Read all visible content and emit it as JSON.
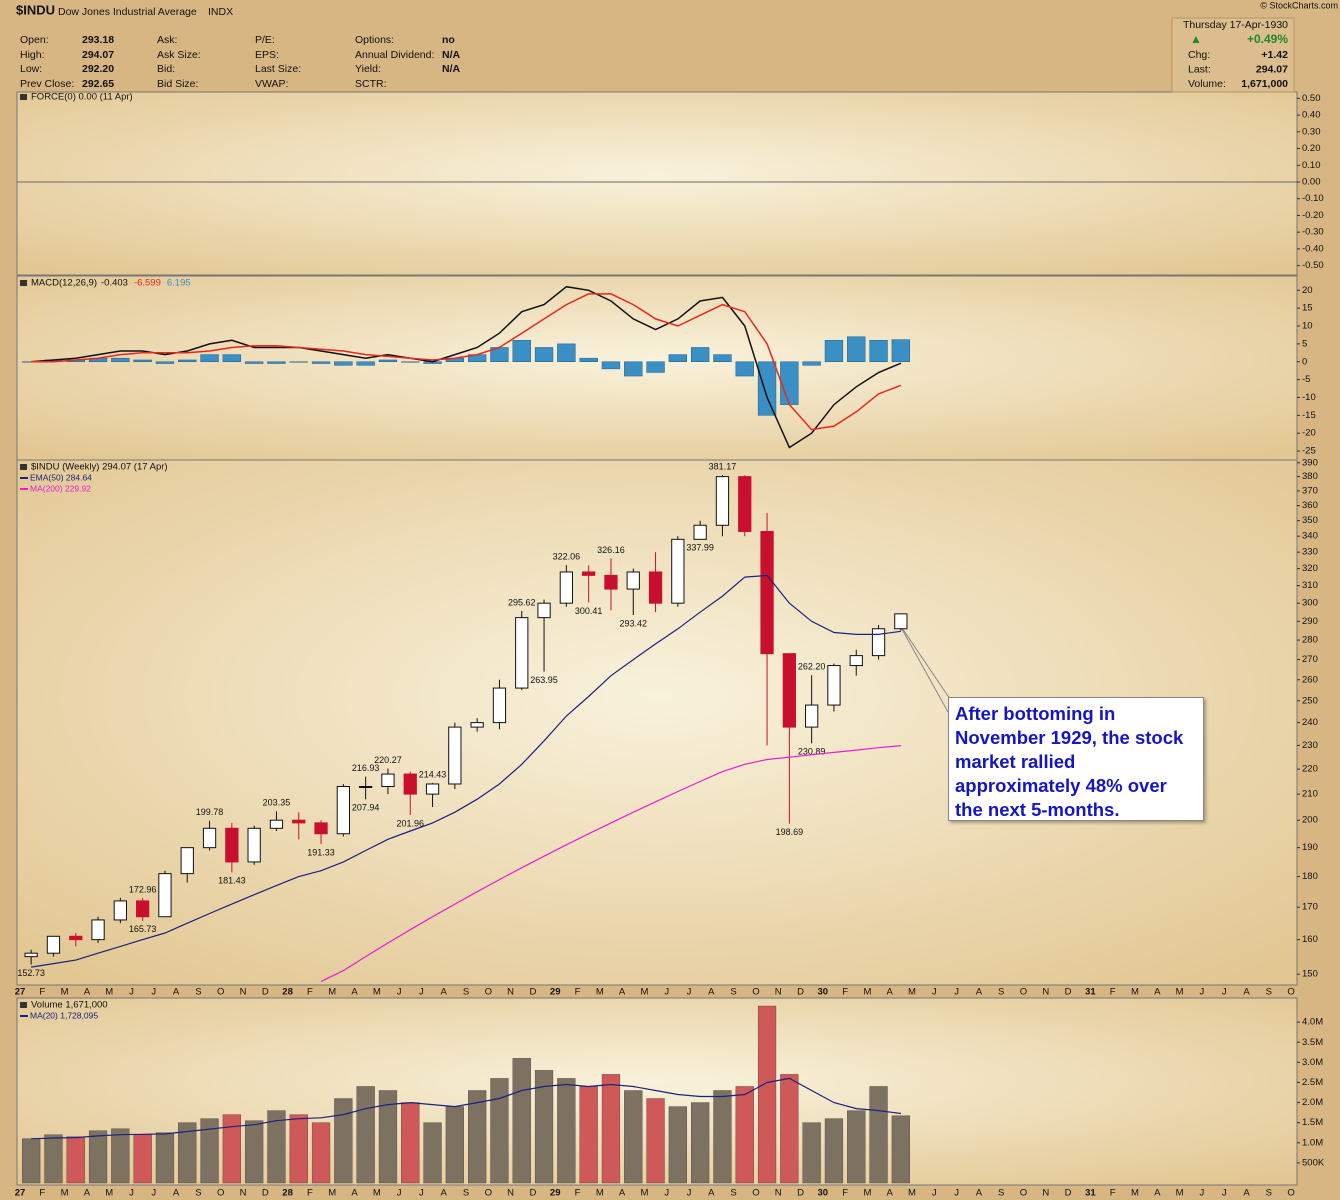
{
  "header": {
    "symbol": "$INDU",
    "name": "Dow Jones Industrial Average",
    "exchange": "INDX",
    "columns": [
      [
        {
          "label": "Open:",
          "value": "293.18"
        },
        {
          "label": "High:",
          "value": "294.07"
        },
        {
          "label": "Low:",
          "value": "292.20"
        },
        {
          "label": "Prev Close:",
          "value": "292.65"
        }
      ],
      [
        {
          "label": "Ask:"
        },
        {
          "label": "Ask Size:"
        },
        {
          "label": "Bid:"
        },
        {
          "label": "Bid Size:"
        }
      ],
      [
        {
          "label": "P/E:"
        },
        {
          "label": "EPS:"
        },
        {
          "label": "Last Size:"
        },
        {
          "label": "VWAP:"
        }
      ],
      [
        {
          "label": "Options:",
          "value": "no"
        },
        {
          "label": "Annual Dividend:",
          "value": "N/A"
        },
        {
          "label": "Yield:",
          "value": "N/A"
        },
        {
          "label": "SCTR:"
        }
      ]
    ],
    "date": "Thursday 17-Apr-1930",
    "change_pct": "+0.49%",
    "quote": [
      {
        "label": "Chg:",
        "value": "+1.42"
      },
      {
        "label": "Last:",
        "value": "294.07"
      },
      {
        "label": "Volume:",
        "value": "1,671,000"
      }
    ],
    "copyright": "© StockCharts.com"
  },
  "chart_data": [
    {
      "type": "line",
      "legend_label": "FORCE(0) 0.00 (11 Apr)",
      "zero_line": true,
      "ylim": [
        -0.55,
        0.55
      ],
      "yticks": [
        {
          "value": 0.5,
          "label": "0.50"
        },
        {
          "value": 0.4,
          "label": "0.40"
        },
        {
          "value": 0.3,
          "label": "0.30"
        },
        {
          "value": 0.2,
          "label": "0.20"
        },
        {
          "value": 0.1,
          "label": "0.10"
        },
        {
          "value": 0,
          "label": "0.00"
        },
        {
          "value": -0.1,
          "label": "-0.10"
        },
        {
          "value": -0.2,
          "label": "-0.20"
        },
        {
          "value": -0.3,
          "label": "-0.30"
        },
        {
          "value": -0.4,
          "label": "-0.40"
        },
        {
          "value": -0.5,
          "label": "-0.50"
        }
      ]
    },
    {
      "type": "macd",
      "legend_label": "MACD(12,26,9)",
      "ylim": [
        -27.5,
        24
      ],
      "yticks": [
        20,
        15,
        10,
        5,
        0,
        -5,
        -10,
        -15,
        -20,
        -25
      ],
      "series": [
        {
          "name": "-0.403",
          "kind": "line",
          "color": "#111111",
          "values": [
            0,
            0.5,
            1,
            2,
            3,
            3,
            2,
            3,
            5,
            6,
            4,
            4,
            4,
            3,
            2,
            1,
            2,
            1,
            0,
            2,
            4,
            8,
            14,
            16,
            21,
            20,
            17,
            12,
            9,
            12,
            17,
            18,
            10,
            -10,
            -24,
            -20,
            -12,
            -7,
            -3,
            -0.403,
            null,
            null,
            null,
            null,
            null,
            null,
            null,
            null,
            null,
            null,
            null,
            null,
            null,
            null,
            null,
            null,
            null,
            null
          ]
        },
        {
          "name": "-6.599",
          "kind": "line",
          "color": "#e8281e",
          "values": [
            0,
            0,
            0.5,
            1,
            2,
            2.5,
            2.5,
            2.5,
            3,
            4,
            4.5,
            4.5,
            4,
            3.5,
            3,
            2,
            1.5,
            1,
            0.5,
            1,
            2,
            4,
            8,
            12,
            16,
            19,
            19,
            16,
            12,
            10,
            13,
            16,
            14,
            5,
            -12,
            -19,
            -18,
            -14,
            -9,
            -6.599,
            null,
            null,
            null,
            null,
            null,
            null,
            null,
            null,
            null,
            null,
            null,
            null,
            null,
            null,
            null,
            null,
            null,
            null
          ]
        },
        {
          "name": "6.195",
          "kind": "bar",
          "color": "#3a8fc4",
          "values": [
            0,
            0.5,
            0.5,
            1,
            1,
            0.5,
            -0.5,
            0.5,
            2,
            2,
            -0.5,
            -0.5,
            0,
            -0.5,
            -1,
            -1,
            0.5,
            0,
            -0.5,
            1,
            2,
            4,
            6,
            4,
            5,
            1,
            -2,
            -4,
            -3,
            2,
            4,
            2,
            -4,
            -15,
            -12,
            -1,
            6,
            7,
            6,
            6.195,
            null,
            null,
            null,
            null,
            null,
            null,
            null,
            null,
            null,
            null,
            null,
            null,
            null,
            null,
            null,
            null,
            null,
            null
          ]
        }
      ]
    },
    {
      "type": "candlestick",
      "legend_label": "$INDU (Weekly) 294.07 (17 Apr)",
      "log_scale": true,
      "ylim": [
        147,
        392
      ],
      "yticks": [
        390,
        380,
        370,
        360,
        350,
        340,
        330,
        320,
        310,
        300,
        290,
        280,
        270,
        260,
        250,
        240,
        230,
        220,
        210,
        200,
        190,
        180,
        170,
        160,
        150
      ],
      "categories": [
        "27",
        "F",
        "M",
        "A",
        "M",
        "J",
        "J",
        "A",
        "S",
        "O",
        "N",
        "D",
        "28",
        "F",
        "M",
        "A",
        "M",
        "J",
        "J",
        "A",
        "S",
        "O",
        "N",
        "D",
        "29",
        "F",
        "M",
        "A",
        "M",
        "J",
        "J",
        "A",
        "S",
        "O",
        "N",
        "D",
        "30",
        "F",
        "M",
        "A",
        "M",
        "J",
        "J",
        "A",
        "S",
        "O",
        "N",
        "D",
        "31",
        "F",
        "M",
        "A",
        "M",
        "J",
        "J",
        "A",
        "S",
        "O"
      ],
      "open": [
        155,
        156,
        161,
        160,
        166,
        172,
        167,
        181,
        190,
        197,
        185,
        197,
        200,
        199,
        195,
        213,
        213,
        218,
        210,
        214,
        238,
        240,
        256,
        292,
        300,
        318,
        316,
        308,
        318,
        300,
        338,
        347,
        380,
        343,
        273,
        238,
        248,
        267,
        272,
        286,
        null,
        null,
        null,
        null,
        null,
        null,
        null,
        null,
        null,
        null,
        null,
        null,
        null,
        null,
        null,
        null,
        null,
        null
      ],
      "high": [
        157,
        161,
        162,
        167,
        173,
        172.96,
        182,
        190,
        199.78,
        199,
        198,
        203.35,
        203,
        200,
        214,
        216.93,
        220.27,
        219,
        214.43,
        240,
        242,
        260,
        295.62,
        302,
        322.06,
        322,
        326.16,
        320,
        330,
        340,
        350,
        381.17,
        381,
        355,
        273,
        262.2,
        268,
        275,
        288,
        294.07,
        null,
        null,
        null,
        null,
        null,
        null,
        null,
        null,
        null,
        null,
        null,
        null,
        null,
        null,
        null,
        null,
        null,
        null
      ],
      "low": [
        152.73,
        155,
        158,
        159,
        165,
        165.73,
        167,
        178,
        189,
        181.43,
        184,
        196,
        193,
        191.33,
        194,
        207.94,
        210,
        201.96,
        205,
        212,
        236,
        237,
        255,
        263.95,
        298,
        300.41,
        296,
        293.42,
        295,
        298,
        337.99,
        340,
        340,
        230,
        198.69,
        230.89,
        245,
        262,
        270,
        285,
        null,
        null,
        null,
        null,
        null,
        null,
        null,
        null,
        null,
        null,
        null,
        null,
        null,
        null,
        null,
        null,
        null,
        null
      ],
      "close": [
        156,
        161,
        160,
        166,
        172,
        167,
        181,
        190,
        197,
        185,
        197,
        200,
        199,
        195,
        213,
        213,
        218,
        210,
        214,
        238,
        240,
        256,
        292,
        300,
        318,
        316,
        308,
        318,
        300,
        338,
        347,
        380,
        343,
        273,
        238,
        248,
        267,
        272,
        286,
        294.07,
        null,
        null,
        null,
        null,
        null,
        null,
        null,
        null,
        null,
        null,
        null,
        null,
        null,
        null,
        null,
        null,
        null,
        null
      ],
      "high_labels": [
        null,
        null,
        null,
        null,
        null,
        "172.96",
        null,
        null,
        "199.78",
        null,
        null,
        "203.35",
        null,
        null,
        null,
        "216.93",
        "220.27",
        null,
        "214.43",
        null,
        null,
        null,
        "295.62",
        null,
        "322.06",
        null,
        "326.16",
        null,
        null,
        null,
        null,
        "381.17",
        null,
        null,
        null,
        "262.20",
        null,
        null,
        null,
        null,
        null,
        null,
        null,
        null,
        null,
        null,
        null,
        null,
        null,
        null,
        null,
        null,
        null,
        null,
        null,
        null,
        null,
        null
      ],
      "low_labels": [
        "152.73",
        null,
        null,
        null,
        null,
        "165.73",
        null,
        null,
        null,
        "181.43",
        null,
        null,
        null,
        "191.33",
        null,
        "207.94",
        null,
        "201.96",
        null,
        null,
        null,
        null,
        null,
        "263.95",
        null,
        "300.41",
        null,
        "293.42",
        null,
        null,
        "337.99",
        null,
        null,
        null,
        "198.69",
        "230.89",
        null,
        null,
        null,
        null,
        null,
        null,
        null,
        null,
        null,
        null,
        null,
        null,
        null,
        null,
        null,
        null,
        null,
        null,
        null,
        null,
        null,
        null
      ],
      "series": [
        {
          "name": "EMA(50) 284.64",
          "color": "#1a237e",
          "values": [
            152,
            153,
            154,
            156,
            158,
            160,
            162,
            165,
            168,
            171,
            174,
            177,
            180,
            182,
            185,
            189,
            193,
            196,
            199,
            203,
            208,
            214,
            222,
            232,
            243,
            252,
            262,
            270,
            278,
            286,
            295,
            304,
            315,
            316,
            300,
            290,
            284,
            283,
            283,
            284.64,
            null,
            null,
            null,
            null,
            null,
            null,
            null,
            null,
            null,
            null,
            null,
            null,
            null,
            null,
            null,
            null,
            null,
            null
          ]
        },
        {
          "name": "MA(200) 229.92",
          "color": "#e81ed6",
          "values": [
            null,
            null,
            null,
            null,
            null,
            null,
            null,
            null,
            null,
            null,
            null,
            null,
            null,
            148,
            151,
            155,
            159,
            163,
            167,
            171,
            175,
            179,
            183,
            187,
            191,
            195,
            199,
            203,
            207,
            211,
            215,
            219,
            222,
            224,
            225,
            226,
            227,
            228,
            229,
            229.92,
            null,
            null,
            null,
            null,
            null,
            null,
            null,
            null,
            null,
            null,
            null,
            null,
            null,
            null,
            null,
            null,
            null,
            null
          ]
        }
      ],
      "annotation": "After bottoming in November 1929, the stock market rallied approximately 48% over the next 5-months."
    },
    {
      "type": "bar",
      "legend_label": "Volume 1,671,000",
      "ylim": [
        0,
        4600000
      ],
      "yticks": [
        {
          "value": 4000000,
          "label": "4.0M"
        },
        {
          "value": 3500000,
          "label": "3.5M"
        },
        {
          "value": 3000000,
          "label": "3.0M"
        },
        {
          "value": 2500000,
          "label": "2.5M"
        },
        {
          "value": 2000000,
          "label": "2.0M"
        },
        {
          "value": 1500000,
          "label": "1.5M"
        },
        {
          "value": 1000000,
          "label": "1.0M"
        },
        {
          "value": 500000,
          "label": "500K"
        }
      ],
      "categories": [
        "27",
        "F",
        "M",
        "A",
        "M",
        "J",
        "J",
        "A",
        "S",
        "O",
        "N",
        "D",
        "28",
        "F",
        "M",
        "A",
        "M",
        "J",
        "J",
        "A",
        "S",
        "O",
        "N",
        "D",
        "29",
        "F",
        "M",
        "A",
        "M",
        "J",
        "J",
        "A",
        "S",
        "O",
        "N",
        "D",
        "30",
        "F",
        "M",
        "A",
        "M",
        "J",
        "J",
        "A",
        "S",
        "O",
        "N",
        "D",
        "31",
        "F",
        "M",
        "A",
        "M",
        "J",
        "J",
        "A",
        "S",
        "O"
      ],
      "values": [
        1100000,
        1200000,
        1150000,
        1300000,
        1350000,
        1200000,
        1250000,
        1500000,
        1600000,
        1700000,
        1550000,
        1800000,
        1700000,
        1500000,
        2100000,
        2400000,
        2300000,
        2000000,
        1500000,
        1900000,
        2300000,
        2600000,
        3100000,
        2800000,
        2600000,
        2400000,
        2700000,
        2300000,
        2100000,
        1900000,
        2000000,
        2300000,
        2400000,
        4400000,
        2700000,
        1500000,
        1600000,
        1800000,
        2400000,
        1671000,
        null,
        null,
        null,
        null,
        null,
        null,
        null,
        null,
        null,
        null,
        null,
        null,
        null,
        null,
        null,
        null,
        null,
        null
      ],
      "series": [
        {
          "name": "MA(20) 1,728,095",
          "color": "#1a237e",
          "values": [
            1100000,
            1120000,
            1130000,
            1170000,
            1200000,
            1210000,
            1220000,
            1280000,
            1340000,
            1400000,
            1450000,
            1550000,
            1600000,
            1620000,
            1700000,
            1850000,
            1950000,
            2000000,
            1950000,
            1900000,
            2000000,
            2100000,
            2300000,
            2400000,
            2450000,
            2400000,
            2450000,
            2400000,
            2300000,
            2200000,
            2150000,
            2150000,
            2200000,
            2500000,
            2600000,
            2300000,
            2000000,
            1850000,
            1800000,
            1728095,
            null,
            null,
            null,
            null,
            null,
            null,
            null,
            null,
            null,
            null,
            null,
            null,
            null,
            null,
            null,
            null,
            null,
            null
          ]
        }
      ]
    }
  ]
}
